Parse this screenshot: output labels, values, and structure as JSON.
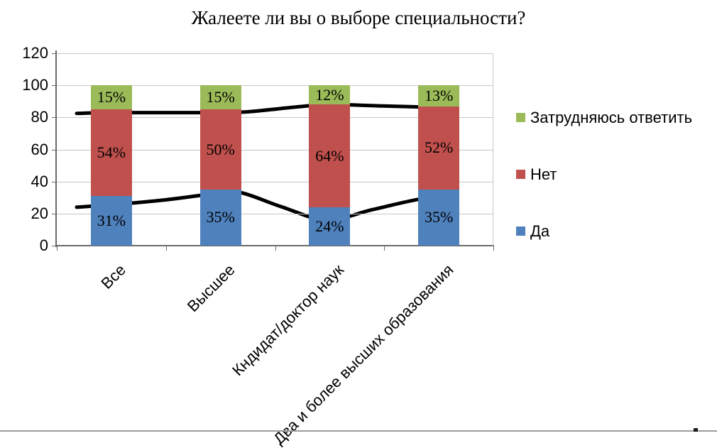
{
  "title": "Жалеете ли вы о выборе специальности?",
  "chart_data": {
    "type": "bar",
    "stacked": true,
    "title": "Жалеете ли вы о выборе специальности?",
    "categories": [
      "Все",
      "Высшее",
      "Кндидат/доктор наук",
      "Два и более высших образования"
    ],
    "series": [
      {
        "name": "Да",
        "color": "#4F81BD",
        "values": [
          31,
          35,
          24,
          35
        ]
      },
      {
        "name": "Нет",
        "color": "#C0504D",
        "values": [
          54,
          50,
          64,
          52
        ]
      },
      {
        "name": "Затрудняюсь ответить",
        "color": "#9BBB59",
        "values": [
          15,
          15,
          12,
          13
        ]
      }
    ],
    "data_label_suffix": "%",
    "ylim": [
      0,
      120
    ],
    "yticks": [
      0,
      20,
      40,
      60,
      80,
      100,
      120
    ],
    "grid": true,
    "legend_position": "right",
    "overlay_lines": [
      {
        "name": "upper-smoothed-line",
        "color": "#000000",
        "samples": [
          [
            108,
            82.5
          ],
          [
            157,
            83
          ],
          [
            232,
            83
          ],
          [
            310,
            83
          ],
          [
            352,
            83.6
          ],
          [
            420,
            86.6
          ],
          [
            465,
            88
          ],
          [
            540,
            87.1
          ],
          [
            600,
            86.4
          ],
          [
            643,
            86
          ]
        ]
      },
      {
        "name": "lower-smoothed-line",
        "color": "#000000",
        "samples": [
          [
            108,
            24
          ],
          [
            157,
            25.5
          ],
          [
            232,
            28.5
          ],
          [
            300,
            32.3
          ],
          [
            338,
            33.2
          ],
          [
            395,
            24.5
          ],
          [
            460,
            16
          ],
          [
            525,
            22.5
          ],
          [
            595,
            29.3
          ],
          [
            643,
            30
          ]
        ]
      }
    ]
  },
  "legend": [
    {
      "label": "Затрудняюсь ответить",
      "color": "#9BBB59"
    },
    {
      "label": "Нет",
      "color": "#C0504D"
    },
    {
      "label": "Да",
      "color": "#4F81BD"
    }
  ],
  "colors": {
    "background": "#FFFFFF",
    "gridline": "#C6C6C6",
    "axis": "#6A6A6A",
    "overlay_line": "#000000",
    "bottom_rule": "#9D9D9D"
  }
}
